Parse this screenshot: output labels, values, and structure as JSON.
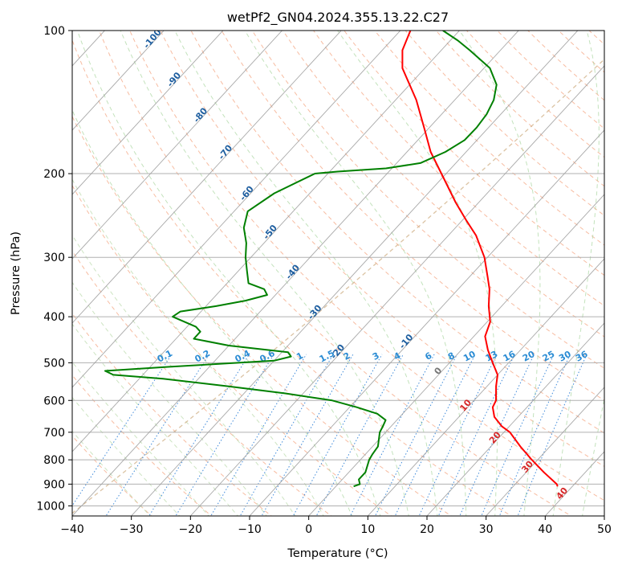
{
  "chart_data": {
    "type": "line",
    "title": "wetPf2_GN04.2024.355.13.22.C27",
    "xlabel": "Temperature (°C)",
    "ylabel": "Pressure (hPa)",
    "xlim": [
      -40,
      50
    ],
    "ylim": [
      1050,
      100
    ],
    "y_scale": "log",
    "grid": true,
    "x_ticks": [
      -40,
      -30,
      -20,
      -10,
      0,
      10,
      20,
      30,
      40,
      50
    ],
    "y_ticks": [
      100,
      200,
      300,
      400,
      500,
      600,
      700,
      800,
      900,
      1000
    ],
    "skew_label_values": [
      "-100",
      "-90",
      "-80",
      "-70",
      "-60",
      "-50",
      "-40",
      "-30",
      "-20",
      "-10",
      "0",
      "10",
      "20",
      "30",
      "40"
    ],
    "mixing_ratio_label_values": [
      "0.1",
      "0.2",
      "0.4",
      "0.6",
      "1",
      "1.5",
      "2",
      "3",
      "4",
      "6",
      "8",
      "10",
      "13",
      "16",
      "20",
      "25",
      "30",
      "36"
    ],
    "series": [
      {
        "color": "#ff0000",
        "points": [
          {
            "p": 910,
            "t": 37.5
          },
          {
            "p": 900,
            "t": 37.0
          },
          {
            "p": 850,
            "t": 33.0
          },
          {
            "p": 800,
            "t": 29.0
          },
          {
            "p": 750,
            "t": 25.0
          },
          {
            "p": 700,
            "t": 21.0
          },
          {
            "p": 680,
            "t": 18.7
          },
          {
            "p": 650,
            "t": 16.0
          },
          {
            "p": 620,
            "t": 14.2
          },
          {
            "p": 600,
            "t": 13.7
          },
          {
            "p": 560,
            "t": 11.5
          },
          {
            "p": 530,
            "t": 10.0
          },
          {
            "p": 500,
            "t": 7.3
          },
          {
            "p": 470,
            "t": 4.5
          },
          {
            "p": 440,
            "t": 1.9
          },
          {
            "p": 410,
            "t": 0.5
          },
          {
            "p": 380,
            "t": -2.2
          },
          {
            "p": 350,
            "t": -4.7
          },
          {
            "p": 330,
            "t": -6.9
          },
          {
            "p": 300,
            "t": -10.5
          },
          {
            "p": 270,
            "t": -15.3
          },
          {
            "p": 250,
            "t": -19.5
          },
          {
            "p": 230,
            "t": -23.9
          },
          {
            "p": 200,
            "t": -30.8
          },
          {
            "p": 180,
            "t": -36.0
          },
          {
            "p": 160,
            "t": -40.9
          },
          {
            "p": 140,
            "t": -46.5
          },
          {
            "p": 120,
            "t": -53.8
          },
          {
            "p": 110,
            "t": -56.6
          },
          {
            "p": 100,
            "t": -58.3
          }
        ]
      },
      {
        "color": "#008000",
        "points": [
          {
            "p": 910,
            "t": 3.0
          },
          {
            "p": 900,
            "t": 3.7
          },
          {
            "p": 880,
            "t": 2.8
          },
          {
            "p": 850,
            "t": 2.8
          },
          {
            "p": 800,
            "t": 1.5
          },
          {
            "p": 780,
            "t": 1.2
          },
          {
            "p": 750,
            "t": 0.9
          },
          {
            "p": 700,
            "t": -1.0
          },
          {
            "p": 680,
            "t": -1.4
          },
          {
            "p": 660,
            "t": -1.9
          },
          {
            "p": 640,
            "t": -4.3
          },
          {
            "p": 620,
            "t": -8.8
          },
          {
            "p": 600,
            "t": -14.0
          },
          {
            "p": 580,
            "t": -23.0
          },
          {
            "p": 560,
            "t": -34.0
          },
          {
            "p": 540,
            "t": -46.0
          },
          {
            "p": 530,
            "t": -55.0
          },
          {
            "p": 520,
            "t": -57.0
          },
          {
            "p": 510,
            "t": -47.0
          },
          {
            "p": 495,
            "t": -30.0
          },
          {
            "p": 485,
            "t": -27.8
          },
          {
            "p": 475,
            "t": -29.0
          },
          {
            "p": 460,
            "t": -40.0
          },
          {
            "p": 445,
            "t": -47.0
          },
          {
            "p": 430,
            "t": -47.0
          },
          {
            "p": 420,
            "t": -48.5
          },
          {
            "p": 400,
            "t": -54.0
          },
          {
            "p": 390,
            "t": -53.5
          },
          {
            "p": 380,
            "t": -48.3
          },
          {
            "p": 370,
            "t": -44.2
          },
          {
            "p": 360,
            "t": -41.4
          },
          {
            "p": 350,
            "t": -42.8
          },
          {
            "p": 340,
            "t": -46.4
          },
          {
            "p": 320,
            "t": -48.6
          },
          {
            "p": 300,
            "t": -50.9
          },
          {
            "p": 280,
            "t": -53.0
          },
          {
            "p": 260,
            "t": -55.8
          },
          {
            "p": 240,
            "t": -57.7
          },
          {
            "p": 220,
            "t": -56.0
          },
          {
            "p": 200,
            "t": -52.2
          },
          {
            "p": 198,
            "t": -48.7
          },
          {
            "p": 195,
            "t": -41.0
          },
          {
            "p": 190,
            "t": -36.0
          },
          {
            "p": 180,
            "t": -33.5
          },
          {
            "p": 170,
            "t": -32.1
          },
          {
            "p": 160,
            "t": -32.0
          },
          {
            "p": 150,
            "t": -32.4
          },
          {
            "p": 140,
            "t": -33.4
          },
          {
            "p": 130,
            "t": -35.3
          },
          {
            "p": 120,
            "t": -39.0
          },
          {
            "p": 110,
            "t": -45.2
          },
          {
            "p": 105,
            "t": -48.7
          },
          {
            "p": 100,
            "t": -52.8
          }
        ]
      }
    ]
  }
}
